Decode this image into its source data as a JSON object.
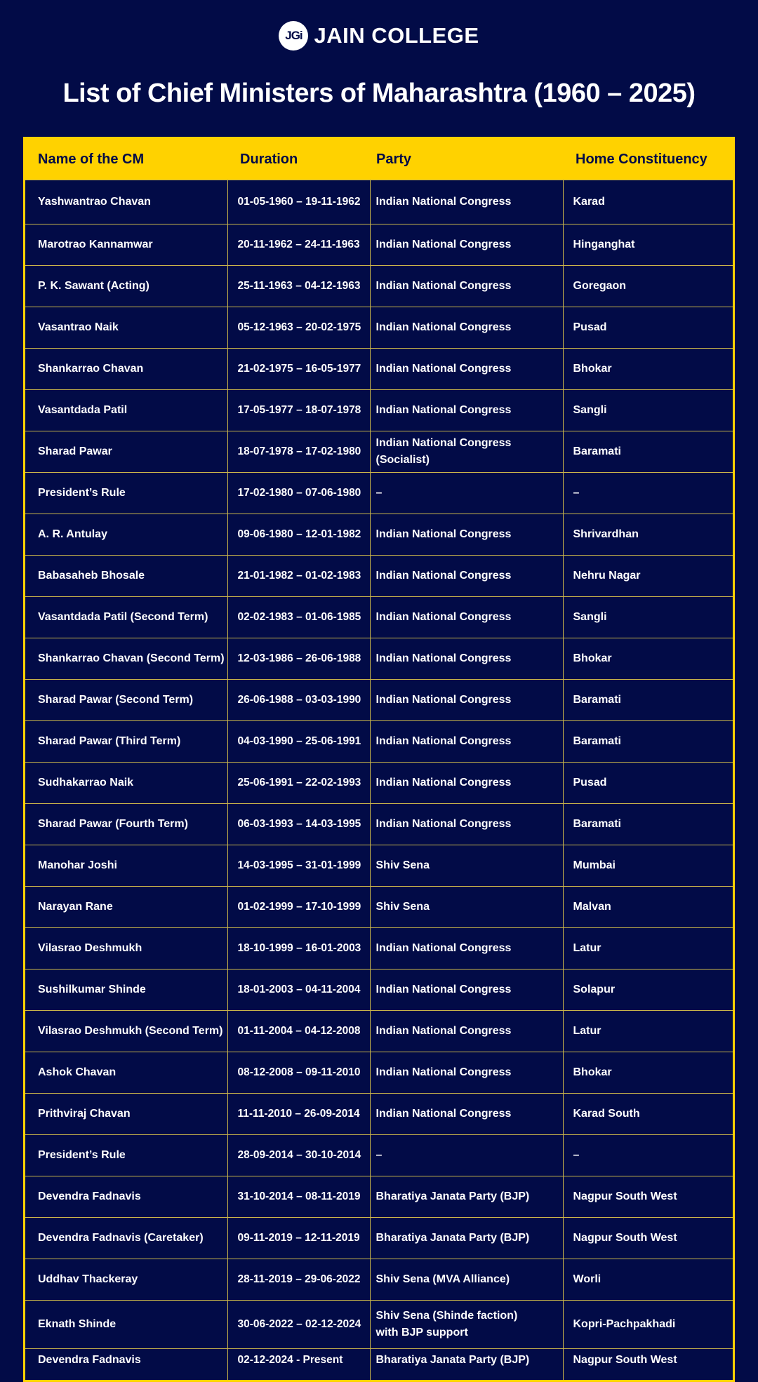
{
  "brand": {
    "logo_text": "JGi",
    "name": "JAIN COLLEGE"
  },
  "title": "List of Chief Ministers of Maharashtra (1960 – 2025)",
  "colors": {
    "background": "#020b47",
    "accent": "#ffd200"
  },
  "table": {
    "headers": [
      "Name of the CM",
      "Duration",
      "Party",
      "Home Constituency"
    ],
    "rows": [
      [
        "Yashwantrao Chavan",
        "01-05-1960 – 19-11-1962",
        "Indian National Congress",
        "Karad"
      ],
      [
        "Marotrao Kannamwar",
        "20-11-1962 – 24-11-1963",
        "Indian National Congress",
        "Hinganghat"
      ],
      [
        "P. K. Sawant (Acting)",
        "25-11-1963 – 04-12-1963",
        "Indian National Congress",
        "Goregaon"
      ],
      [
        "Vasantrao Naik",
        "05-12-1963 – 20-02-1975",
        "Indian National Congress",
        "Pusad"
      ],
      [
        "Shankarrao Chavan",
        "21-02-1975 – 16-05-1977",
        "Indian National Congress",
        "Bhokar"
      ],
      [
        "Vasantdada Patil",
        "17-05-1977 – 18-07-1978",
        "Indian National Congress",
        "Sangli"
      ],
      [
        "Sharad Pawar",
        "18-07-1978 – 17-02-1980",
        "Indian National Congress (Socialist)",
        "Baramati"
      ],
      [
        "President’s Rule",
        "17-02-1980 – 07-06-1980",
        "–",
        "–"
      ],
      [
        "A. R. Antulay",
        "09-06-1980 – 12-01-1982",
        "Indian National Congress",
        "Shrivardhan"
      ],
      [
        "Babasaheb Bhosale",
        "21-01-1982 – 01-02-1983",
        "Indian National Congress",
        "Nehru Nagar"
      ],
      [
        "Vasantdada Patil (Second Term)",
        "02-02-1983 – 01-06-1985",
        "Indian National Congress",
        "Sangli"
      ],
      [
        "Shankarrao Chavan (Second Term)",
        "12-03-1986 – 26-06-1988",
        "Indian National Congress",
        "Bhokar"
      ],
      [
        "Sharad Pawar (Second Term)",
        "26-06-1988 – 03-03-1990",
        "Indian National Congress",
        "Baramati"
      ],
      [
        "Sharad Pawar (Third Term)",
        "04-03-1990 – 25-06-1991",
        "Indian National Congress",
        "Baramati"
      ],
      [
        "Sudhakarrao Naik",
        "25-06-1991 – 22-02-1993",
        "Indian National Congress",
        "Pusad"
      ],
      [
        "Sharad Pawar (Fourth Term)",
        "06-03-1993 – 14-03-1995",
        "Indian National Congress",
        "Baramati"
      ],
      [
        "Manohar Joshi",
        "14-03-1995 – 31-01-1999",
        "Shiv Sena",
        "Mumbai"
      ],
      [
        "Narayan Rane",
        "01-02-1999 – 17-10-1999",
        "Shiv Sena",
        "Malvan"
      ],
      [
        "Vilasrao Deshmukh",
        "18-10-1999 – 16-01-2003",
        "Indian National Congress",
        "Latur"
      ],
      [
        "Sushilkumar Shinde",
        "18-01-2003 – 04-11-2004",
        "Indian National Congress",
        "Solapur"
      ],
      [
        "Vilasrao Deshmukh (Second Term)",
        "01-11-2004 – 04-12-2008",
        "Indian National Congress",
        "Latur"
      ],
      [
        "Ashok Chavan",
        "08-12-2008 – 09-11-2010",
        "Indian National Congress",
        "Bhokar"
      ],
      [
        "Prithviraj Chavan",
        "11-11-2010 – 26-09-2014",
        "Indian National Congress",
        "Karad South"
      ],
      [
        "President’s Rule",
        "28-09-2014 – 30-10-2014",
        "–",
        "–"
      ],
      [
        "Devendra Fadnavis",
        "31-10-2014 – 08-11-2019",
        "Bharatiya Janata Party (BJP)",
        "Nagpur South West"
      ],
      [
        "Devendra Fadnavis (Caretaker)",
        "09-11-2019 – 12-11-2019",
        "Bharatiya Janata Party (BJP)",
        "Nagpur South West"
      ],
      [
        "Uddhav Thackeray",
        "28-11-2019 – 29-06-2022",
        "Shiv Sena (MVA Alliance)",
        "Worli"
      ],
      [
        "Eknath Shinde",
        "30-06-2022 – 02-12-2024",
        "Shiv Sena (Shinde faction)\nwith BJP support",
        "Kopri-Pachpakhadi"
      ],
      [
        "Devendra Fadnavis",
        "02-12-2024 - Present",
        "Bharatiya Janata Party (BJP)",
        "Nagpur South West"
      ]
    ]
  }
}
